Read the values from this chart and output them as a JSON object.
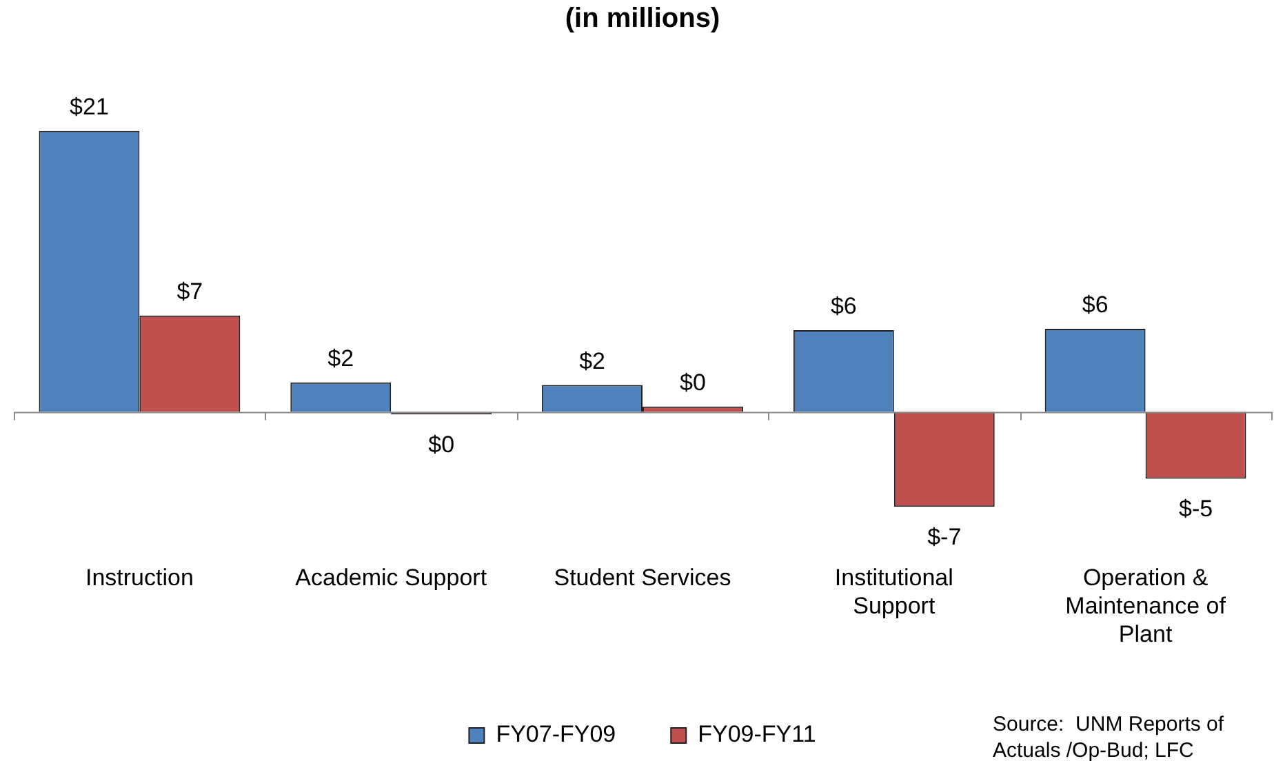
{
  "chart_data": {
    "type": "bar",
    "title": "(in millions)",
    "categories": [
      "Instruction",
      "Academic Support",
      "Student Services",
      "Institutional Support",
      "Operation & Maintenance of Plant"
    ],
    "series": [
      {
        "name": "FY07-FY09",
        "color": "#4f81bd",
        "values": [
          21,
          2.2,
          2.0,
          6.1,
          6.2
        ],
        "value_labels": [
          "$21",
          "$2",
          "$2",
          "$6",
          "$6"
        ]
      },
      {
        "name": "FY09-FY11",
        "color": "#c0504d",
        "values": [
          7.2,
          -0.2,
          0.4,
          -7.1,
          -5.0
        ],
        "value_labels": [
          "$7",
          "$0",
          "$0",
          "$-7",
          "$-5"
        ]
      }
    ],
    "tick_labels": "x",
    "grid": false,
    "legend": "bottom",
    "annotations": [
      "Source:  UNM Reports of Actuals /Op-Bud; LFC"
    ]
  }
}
